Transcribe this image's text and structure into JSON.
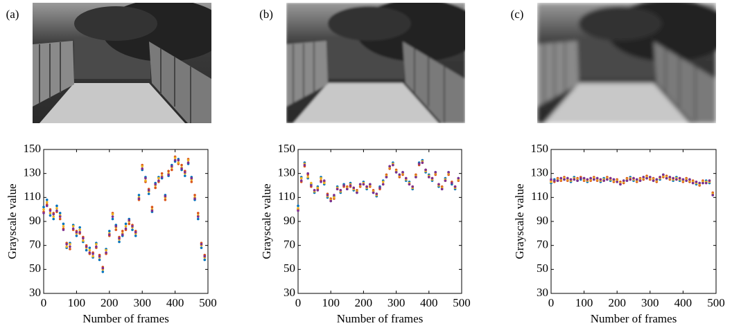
{
  "chart_data": [
    {
      "type": "scatter",
      "label": "(a)",
      "xlabel": "Number of frames",
      "ylabel": "Grayscale value",
      "xlim": [
        0,
        500
      ],
      "ylim": [
        30,
        150
      ],
      "xticks": [
        0,
        100,
        200,
        300,
        400,
        500
      ],
      "yticks": [
        30,
        50,
        70,
        90,
        110,
        130,
        150
      ],
      "x": [
        0,
        10,
        20,
        30,
        40,
        50,
        60,
        70,
        80,
        90,
        100,
        110,
        120,
        130,
        140,
        150,
        160,
        170,
        180,
        190,
        200,
        210,
        220,
        230,
        240,
        250,
        260,
        270,
        280,
        290,
        300,
        310,
        320,
        330,
        340,
        350,
        360,
        370,
        380,
        390,
        400,
        410,
        420,
        430,
        440,
        450,
        460,
        470,
        480,
        490
      ],
      "series": [
        {
          "color": "#0072bd",
          "values": [
            102,
            108,
            95,
            92,
            103,
            97,
            88,
            68,
            72,
            87,
            78,
            85,
            73,
            66,
            68,
            60,
            72,
            58,
            48,
            67,
            82,
            92,
            87,
            73,
            78,
            88,
            92,
            83,
            78,
            112,
            133,
            127,
            113,
            98,
            122,
            127,
            126,
            112,
            128,
            137,
            140,
            142,
            133,
            128,
            138,
            127,
            108,
            92,
            68,
            58
          ]
        },
        {
          "color": "#d95319",
          "values": [
            98,
            104,
            100,
            97,
            98,
            92,
            84,
            72,
            67,
            83,
            82,
            80,
            77,
            70,
            63,
            64,
            68,
            62,
            52,
            63,
            78,
            97,
            83,
            77,
            82,
            83,
            88,
            87,
            82,
            108,
            137,
            123,
            117,
            102,
            118,
            123,
            130,
            108,
            132,
            133,
            144,
            138,
            137,
            132,
            142,
            123,
            112,
            97,
            72,
            62
          ]
        },
        {
          "color": "#edb120",
          "values": [
            100,
            106,
            97,
            94,
            101,
            95,
            86,
            69,
            71,
            86,
            80,
            83,
            74,
            68,
            66,
            61,
            71,
            60,
            50,
            66,
            80,
            96,
            85,
            75,
            80,
            86,
            90,
            85,
            80,
            110,
            136,
            124,
            115,
            100,
            120,
            126,
            128,
            110,
            130,
            135,
            143,
            139,
            135,
            130,
            141,
            125,
            110,
            95,
            70,
            60
          ]
        },
        {
          "color": "#7e2f8e",
          "values": [
            97,
            103,
            99,
            96,
            99,
            94,
            83,
            71,
            69,
            84,
            81,
            81,
            76,
            69,
            64,
            63,
            69,
            61,
            51,
            64,
            79,
            94,
            86,
            76,
            79,
            84,
            91,
            86,
            81,
            109,
            134,
            126,
            116,
            99,
            121,
            124,
            127,
            111,
            129,
            136,
            141,
            141,
            134,
            131,
            139,
            126,
            109,
            94,
            71,
            61
          ]
        }
      ]
    },
    {
      "type": "scatter",
      "label": "(b)",
      "xlabel": "Number of frames",
      "ylabel": "Grayscale value",
      "xlim": [
        0,
        500
      ],
      "ylim": [
        30,
        150
      ],
      "xticks": [
        0,
        100,
        200,
        300,
        400,
        500
      ],
      "yticks": [
        30,
        50,
        70,
        90,
        110,
        130,
        150
      ],
      "x": [
        0,
        10,
        20,
        30,
        40,
        50,
        60,
        70,
        80,
        90,
        100,
        110,
        120,
        130,
        140,
        150,
        160,
        170,
        180,
        190,
        200,
        210,
        220,
        230,
        240,
        250,
        260,
        270,
        280,
        290,
        300,
        310,
        320,
        330,
        340,
        350,
        360,
        370,
        380,
        390,
        400,
        410,
        420,
        430,
        440,
        450,
        460,
        470,
        480,
        490
      ],
      "series": [
        {
          "color": "#0072bd",
          "values": [
            103,
            127,
            139,
            126,
            121,
            114,
            119,
            127,
            121,
            110,
            107,
            111,
            119,
            114,
            121,
            117,
            122,
            116,
            114,
            121,
            123,
            117,
            121,
            114,
            111,
            119,
            124,
            127,
            136,
            139,
            131,
            129,
            131,
            124,
            123,
            117,
            127,
            139,
            141,
            131,
            129,
            124,
            131,
            119,
            117,
            126,
            131,
            121,
            117,
            126
          ]
        },
        {
          "color": "#d95319",
          "values": [
            100,
            123,
            136,
            129,
            119,
            116,
            117,
            124,
            123,
            113,
            109,
            109,
            117,
            116,
            119,
            119,
            119,
            118,
            116,
            119,
            121,
            119,
            119,
            116,
            113,
            117,
            121,
            129,
            134,
            137,
            133,
            127,
            129,
            126,
            121,
            119,
            129,
            137,
            139,
            133,
            127,
            126,
            129,
            121,
            119,
            124,
            129,
            123,
            119,
            124
          ]
        },
        {
          "color": "#edb120",
          "values": [
            101,
            126,
            138,
            127,
            122,
            115,
            118,
            126,
            122,
            111,
            108,
            110,
            118,
            115,
            120,
            118,
            121,
            117,
            115,
            120,
            122,
            118,
            120,
            115,
            112,
            118,
            123,
            128,
            135,
            138,
            132,
            128,
            130,
            125,
            122,
            118,
            128,
            138,
            140,
            132,
            128,
            125,
            130,
            120,
            118,
            125,
            130,
            122,
            118,
            125
          ]
        },
        {
          "color": "#7e2f8e",
          "values": [
            99,
            124,
            137,
            130,
            120,
            116,
            116,
            123,
            124,
            112,
            107,
            112,
            117,
            116,
            120,
            117,
            120,
            118,
            114,
            121,
            121,
            119,
            121,
            114,
            113,
            118,
            121,
            127,
            136,
            137,
            131,
            129,
            131,
            126,
            121,
            119,
            127,
            138,
            139,
            133,
            127,
            126,
            131,
            121,
            117,
            124,
            131,
            122,
            119,
            126
          ]
        }
      ]
    },
    {
      "type": "scatter",
      "label": "(c)",
      "xlabel": "Number of frames",
      "ylabel": "Grayscale value",
      "xlim": [
        0,
        500
      ],
      "ylim": [
        30,
        150
      ],
      "xticks": [
        0,
        100,
        200,
        300,
        400,
        500
      ],
      "yticks": [
        30,
        50,
        70,
        90,
        110,
        130,
        150
      ],
      "x": [
        0,
        10,
        20,
        30,
        40,
        50,
        60,
        70,
        80,
        90,
        100,
        110,
        120,
        130,
        140,
        150,
        160,
        170,
        180,
        190,
        200,
        210,
        220,
        230,
        240,
        250,
        260,
        270,
        280,
        290,
        300,
        310,
        320,
        330,
        340,
        350,
        360,
        370,
        380,
        390,
        400,
        410,
        420,
        430,
        440,
        450,
        460,
        470,
        480,
        490
      ],
      "series": [
        {
          "color": "#0072bd",
          "values": [
            122,
            125,
            124,
            126,
            125,
            126,
            123,
            127,
            124,
            125,
            126,
            123,
            126,
            125,
            126,
            123,
            126,
            125,
            124,
            125,
            123,
            121,
            124,
            124,
            127,
            124,
            125,
            124,
            127,
            126,
            127,
            124,
            125,
            125,
            129,
            126,
            127,
            124,
            127,
            124,
            125,
            124,
            125,
            122,
            121,
            122,
            122,
            124,
            122,
            112
          ]
        },
        {
          "color": "#d95319",
          "values": [
            124,
            123,
            126,
            124,
            127,
            124,
            125,
            125,
            126,
            127,
            124,
            125,
            124,
            127,
            124,
            125,
            124,
            127,
            126,
            123,
            125,
            123,
            122,
            126,
            125,
            126,
            123,
            126,
            125,
            128,
            125,
            126,
            123,
            127,
            127,
            128,
            125,
            126,
            125,
            126,
            123,
            126,
            123,
            124,
            123,
            120,
            124,
            122,
            124,
            114
          ]
        },
        {
          "color": "#edb120",
          "values": [
            123,
            124,
            125,
            125,
            126,
            125,
            124,
            126,
            125,
            126,
            125,
            124,
            125,
            126,
            125,
            124,
            125,
            126,
            125,
            124,
            124,
            122,
            123,
            125,
            126,
            125,
            124,
            125,
            126,
            127,
            126,
            125,
            124,
            126,
            128,
            127,
            126,
            125,
            126,
            125,
            124,
            125,
            124,
            123,
            122,
            121,
            123,
            123,
            123,
            113
          ]
        },
        {
          "color": "#7e2f8e",
          "values": [
            125,
            124,
            124,
            126,
            125,
            126,
            125,
            125,
            124,
            126,
            126,
            125,
            126,
            125,
            126,
            125,
            124,
            125,
            126,
            125,
            123,
            121,
            124,
            124,
            125,
            126,
            125,
            124,
            127,
            126,
            127,
            124,
            125,
            127,
            129,
            126,
            127,
            126,
            125,
            126,
            125,
            124,
            125,
            122,
            123,
            122,
            122,
            122,
            124,
            112
          ]
        }
      ]
    }
  ]
}
